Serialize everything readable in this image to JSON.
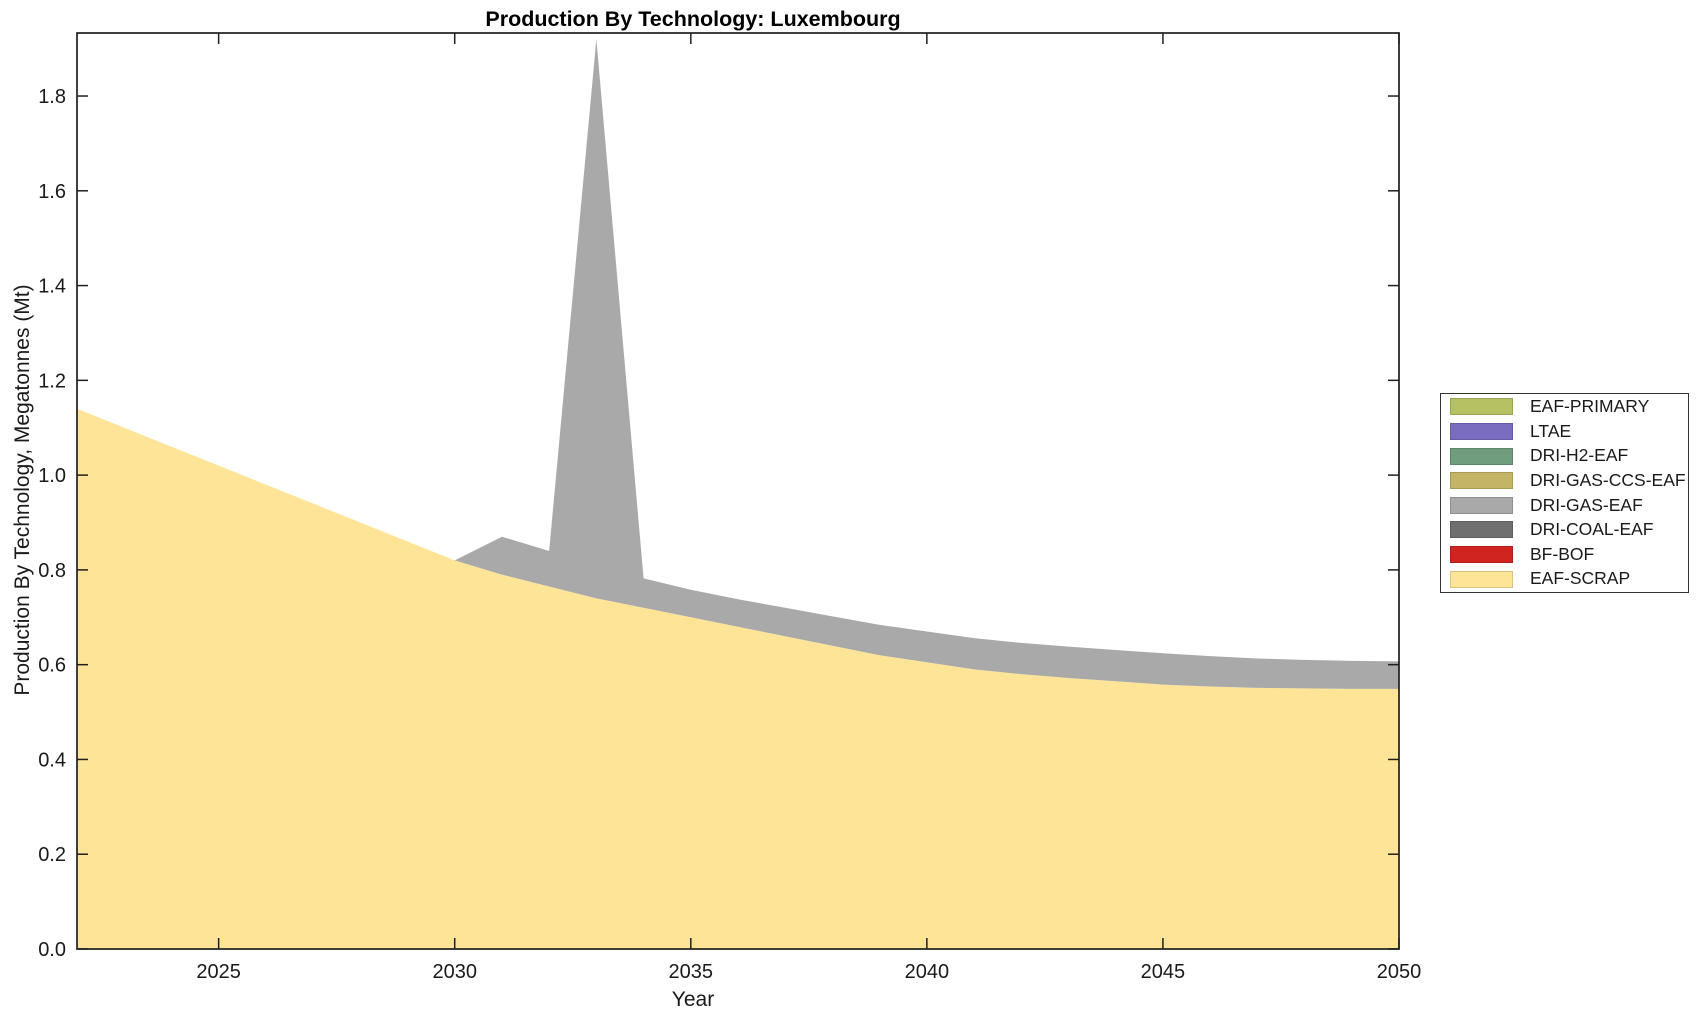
{
  "chart_data": {
    "type": "area",
    "stacked": true,
    "title": "Production By Technology: Luxembourg",
    "xlabel": "Year",
    "ylabel": "Production By Technology, Megatonnes (Mt)",
    "xlim": [
      2022,
      2050
    ],
    "ylim": [
      0,
      1.933
    ],
    "xticks": [
      2025,
      2030,
      2035,
      2040,
      2045,
      2050
    ],
    "xtick_labels": [
      "2025",
      "2030",
      "2035",
      "2040",
      "2045",
      "2050"
    ],
    "yticks": [
      0,
      0.2,
      0.4,
      0.6,
      0.8,
      1.0,
      1.2,
      1.4,
      1.6,
      1.8
    ],
    "ytick_labels": [
      "0.0",
      "0.2",
      "0.4",
      "0.6",
      "0.8",
      "1.0",
      "1.2",
      "1.4",
      "1.6",
      "1.8"
    ],
    "grid": false,
    "legend_position": "outside-right",
    "axis_color": "#1f1f1f",
    "background_color": "#ffffff",
    "x": [
      2022,
      2023,
      2024,
      2025,
      2026,
      2027,
      2028,
      2029,
      2030,
      2031,
      2032,
      2033,
      2034,
      2035,
      2036,
      2037,
      2038,
      2039,
      2040,
      2041,
      2042,
      2043,
      2044,
      2045,
      2046,
      2047,
      2048,
      2049,
      2050
    ],
    "series": [
      {
        "name": "EAF-SCRAP",
        "color": "#fde496",
        "values": [
          1.14,
          1.1,
          1.06,
          1.02,
          0.98,
          0.94,
          0.9,
          0.86,
          0.82,
          0.79,
          0.765,
          0.74,
          0.72,
          0.7,
          0.68,
          0.66,
          0.64,
          0.62,
          0.605,
          0.59,
          0.58,
          0.572,
          0.565,
          0.558,
          0.554,
          0.551,
          0.55,
          0.549,
          0.549
        ]
      },
      {
        "name": "BF-BOF",
        "color": "#d02420",
        "values": [
          0,
          0,
          0,
          0,
          0,
          0,
          0,
          0,
          0,
          0,
          0,
          0,
          0,
          0,
          0,
          0,
          0,
          0,
          0,
          0,
          0,
          0,
          0,
          0,
          0,
          0,
          0,
          0,
          0
        ]
      },
      {
        "name": "DRI-COAL-EAF",
        "color": "#6f6f6f",
        "values": [
          0,
          0,
          0,
          0,
          0,
          0,
          0,
          0,
          0,
          0,
          0,
          0,
          0,
          0,
          0,
          0,
          0,
          0,
          0,
          0,
          0,
          0,
          0,
          0,
          0,
          0,
          0,
          0,
          0
        ]
      },
      {
        "name": "DRI-GAS-EAF",
        "color": "#a9a9a9",
        "values": [
          0,
          0,
          0,
          0,
          0,
          0,
          0,
          0,
          0,
          0.08,
          0.075,
          1.18,
          0.062,
          0.058,
          0.058,
          0.06,
          0.062,
          0.064,
          0.065,
          0.066,
          0.066,
          0.066,
          0.066,
          0.066,
          0.064,
          0.062,
          0.06,
          0.059,
          0.058
        ]
      },
      {
        "name": "DRI-GAS-CCS-EAF",
        "color": "#c4b566",
        "values": [
          0,
          0,
          0,
          0,
          0,
          0,
          0,
          0,
          0,
          0,
          0,
          0,
          0,
          0,
          0,
          0,
          0,
          0,
          0,
          0,
          0,
          0,
          0,
          0,
          0,
          0,
          0,
          0,
          0
        ]
      },
      {
        "name": "DRI-H2-EAF",
        "color": "#6f9d7e",
        "values": [
          0,
          0,
          0,
          0,
          0,
          0,
          0,
          0,
          0,
          0,
          0,
          0,
          0,
          0,
          0,
          0,
          0,
          0,
          0,
          0,
          0,
          0,
          0,
          0,
          0,
          0,
          0,
          0,
          0
        ]
      },
      {
        "name": "LTAE",
        "color": "#7a6cbe",
        "values": [
          0,
          0,
          0,
          0,
          0,
          0,
          0,
          0,
          0,
          0,
          0,
          0,
          0,
          0,
          0,
          0,
          0,
          0,
          0,
          0,
          0,
          0,
          0,
          0,
          0,
          0,
          0,
          0,
          0
        ]
      },
      {
        "name": "EAF-PRIMARY",
        "color": "#b5c163",
        "values": [
          0,
          0,
          0,
          0,
          0,
          0,
          0,
          0,
          0,
          0,
          0,
          0,
          0,
          0,
          0,
          0,
          0,
          0,
          0,
          0,
          0,
          0,
          0,
          0,
          0,
          0,
          0,
          0,
          0
        ]
      }
    ],
    "legend": [
      {
        "label": "EAF-PRIMARY",
        "color": "#b5c163"
      },
      {
        "label": "LTAE",
        "color": "#7a6cbe"
      },
      {
        "label": "DRI-H2-EAF",
        "color": "#6f9d7e"
      },
      {
        "label": "DRI-GAS-CCS-EAF",
        "color": "#c4b566"
      },
      {
        "label": "DRI-GAS-EAF",
        "color": "#a9a9a9"
      },
      {
        "label": "DRI-COAL-EAF",
        "color": "#6f6f6f"
      },
      {
        "label": "BF-BOF",
        "color": "#d02420"
      },
      {
        "label": "EAF-SCRAP",
        "color": "#fde496"
      }
    ]
  }
}
